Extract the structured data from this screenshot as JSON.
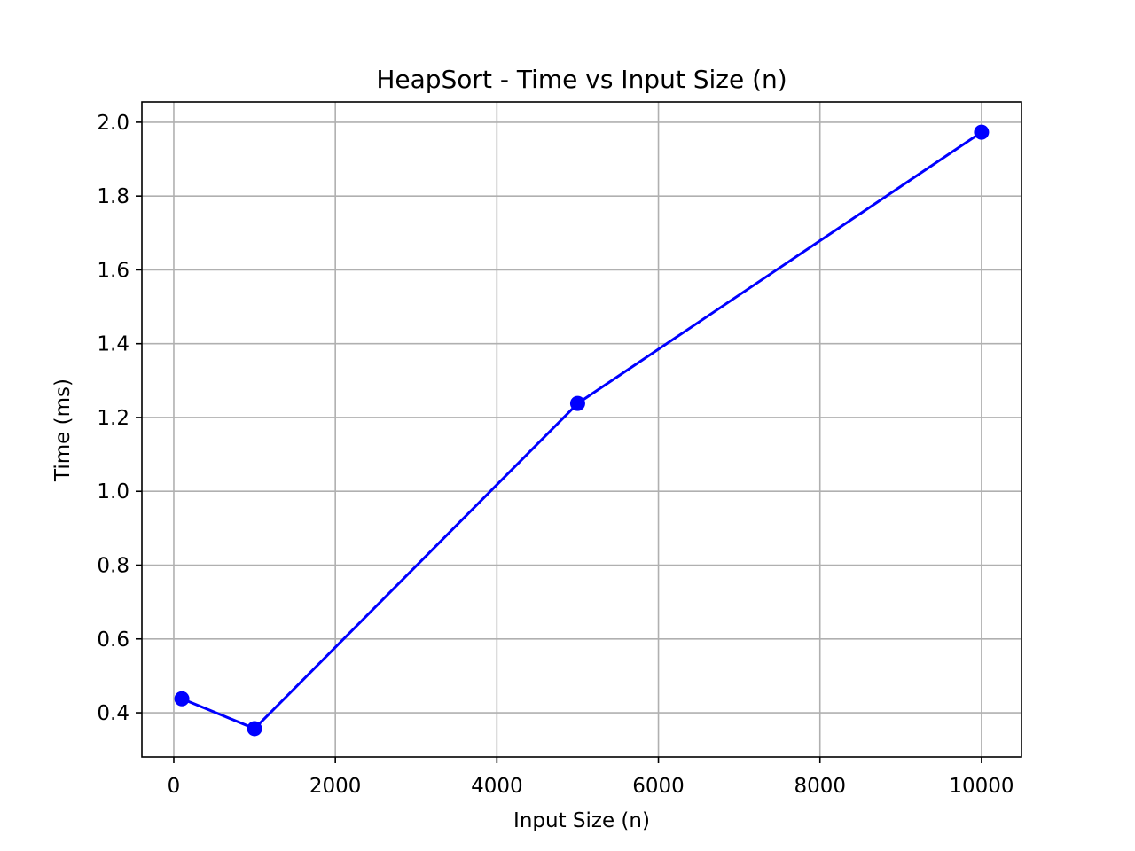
{
  "chart_data": {
    "type": "line",
    "title": "HeapSort - Time vs Input Size (n)",
    "xlabel": "Input Size (n)",
    "ylabel": "Time (ms)",
    "xlim": [
      -395,
      10495
    ],
    "ylim": [
      0.28,
      2.055
    ],
    "xticks": [
      0,
      2000,
      4000,
      6000,
      8000,
      10000
    ],
    "xtick_labels": [
      "0",
      "2000",
      "4000",
      "6000",
      "8000",
      "10000"
    ],
    "yticks": [
      0.4,
      0.6,
      0.8,
      1.0,
      1.2,
      1.4,
      1.6,
      1.8,
      2.0
    ],
    "ytick_labels": [
      "0.4",
      "0.6",
      "0.8",
      "1.0",
      "1.2",
      "1.4",
      "1.6",
      "1.8",
      "2.0"
    ],
    "grid": true,
    "series": [
      {
        "x": [
          100,
          1000,
          5000,
          10000
        ],
        "y": [
          0.438,
          0.357,
          1.238,
          1.973
        ],
        "color": "#0000ff",
        "marker": "circle"
      }
    ]
  },
  "colors": {
    "line": "#0000ff",
    "grid": "#b0b0b0",
    "axes": "#000000"
  }
}
